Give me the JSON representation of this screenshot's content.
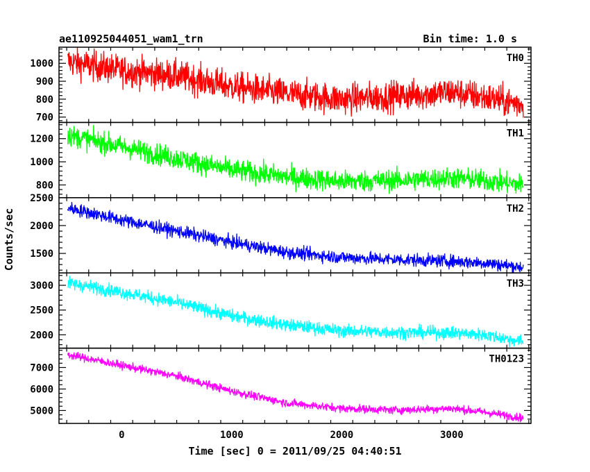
{
  "header": {
    "left": "ae110925044051_wam1_trn",
    "right": "Bin time: 1.0 s"
  },
  "chart_data": {
    "type": "line",
    "ylabel": "Counts/sec",
    "xlabel": "Time [sec] 0 = 2011/09/25 04:40:51",
    "xlim": [
      -570,
      3720
    ],
    "x_ticks": [
      0,
      1000,
      2000,
      3000
    ],
    "x_tick_labels": [
      "0",
      "1000",
      "2000",
      "3000"
    ],
    "x_start": -490,
    "x_end": 3650,
    "bin_time_sec": 1.0,
    "grid": false,
    "panels": [
      {
        "label": "TH0",
        "color": "#ff0000",
        "ylim": [
          670,
          1090
        ],
        "y_ticks": [
          700,
          800,
          900,
          1000
        ],
        "y_tick_labels": [
          "700",
          "800",
          "900",
          "1000"
        ],
        "noise": 60,
        "trend": [
          [
            -490,
            1010
          ],
          [
            0,
            960
          ],
          [
            500,
            930
          ],
          [
            1000,
            870
          ],
          [
            1500,
            830
          ],
          [
            2000,
            800
          ],
          [
            2300,
            810
          ],
          [
            2800,
            830
          ],
          [
            3000,
            840
          ],
          [
            3300,
            810
          ],
          [
            3650,
            770
          ]
        ]
      },
      {
        "label": "TH1",
        "color": "#00ff00",
        "ylim": [
          690,
          1340
        ],
        "y_ticks": [
          800,
          1000,
          1200
        ],
        "y_tick_labels": [
          "800",
          "1000",
          "1200"
        ],
        "noise": 65,
        "trend": [
          [
            -490,
            1230
          ],
          [
            0,
            1130
          ],
          [
            500,
            1030
          ],
          [
            1000,
            930
          ],
          [
            1500,
            870
          ],
          [
            2000,
            830
          ],
          [
            2500,
            840
          ],
          [
            3000,
            860
          ],
          [
            3300,
            840
          ],
          [
            3650,
            800
          ]
        ]
      },
      {
        "label": "TH2",
        "color": "#0000ff",
        "ylim": [
          1150,
          2500
        ],
        "y_ticks": [
          1500,
          2000,
          2500
        ],
        "y_tick_labels": [
          "1500",
          "2000",
          "2500"
        ],
        "noise": 80,
        "trend": [
          [
            -490,
            2320
          ],
          [
            0,
            2100
          ],
          [
            500,
            1900
          ],
          [
            1000,
            1700
          ],
          [
            1500,
            1520
          ],
          [
            2000,
            1430
          ],
          [
            2500,
            1390
          ],
          [
            3000,
            1360
          ],
          [
            3300,
            1330
          ],
          [
            3650,
            1250
          ]
        ]
      },
      {
        "label": "TH3",
        "color": "#00ffff",
        "ylim": [
          1730,
          3250
        ],
        "y_ticks": [
          2000,
          2500,
          3000
        ],
        "y_tick_labels": [
          "2000",
          "2500",
          "3000"
        ],
        "noise": 90,
        "trend": [
          [
            -490,
            3050
          ],
          [
            0,
            2860
          ],
          [
            500,
            2650
          ],
          [
            1000,
            2380
          ],
          [
            1500,
            2200
          ],
          [
            2000,
            2080
          ],
          [
            2500,
            2050
          ],
          [
            3000,
            2040
          ],
          [
            3300,
            2000
          ],
          [
            3650,
            1860
          ]
        ]
      },
      {
        "label": "TH0123",
        "color": "#ff00ff",
        "ylim": [
          4400,
          7900
        ],
        "y_ticks": [
          5000,
          6000,
          7000
        ],
        "y_tick_labels": [
          "5000",
          "6000",
          "7000"
        ],
        "noise": 130,
        "trend": [
          [
            -490,
            7600
          ],
          [
            0,
            7100
          ],
          [
            500,
            6600
          ],
          [
            1000,
            5900
          ],
          [
            1500,
            5350
          ],
          [
            2000,
            5100
          ],
          [
            2500,
            5020
          ],
          [
            3000,
            5100
          ],
          [
            3300,
            4920
          ],
          [
            3650,
            4650
          ]
        ]
      }
    ]
  }
}
